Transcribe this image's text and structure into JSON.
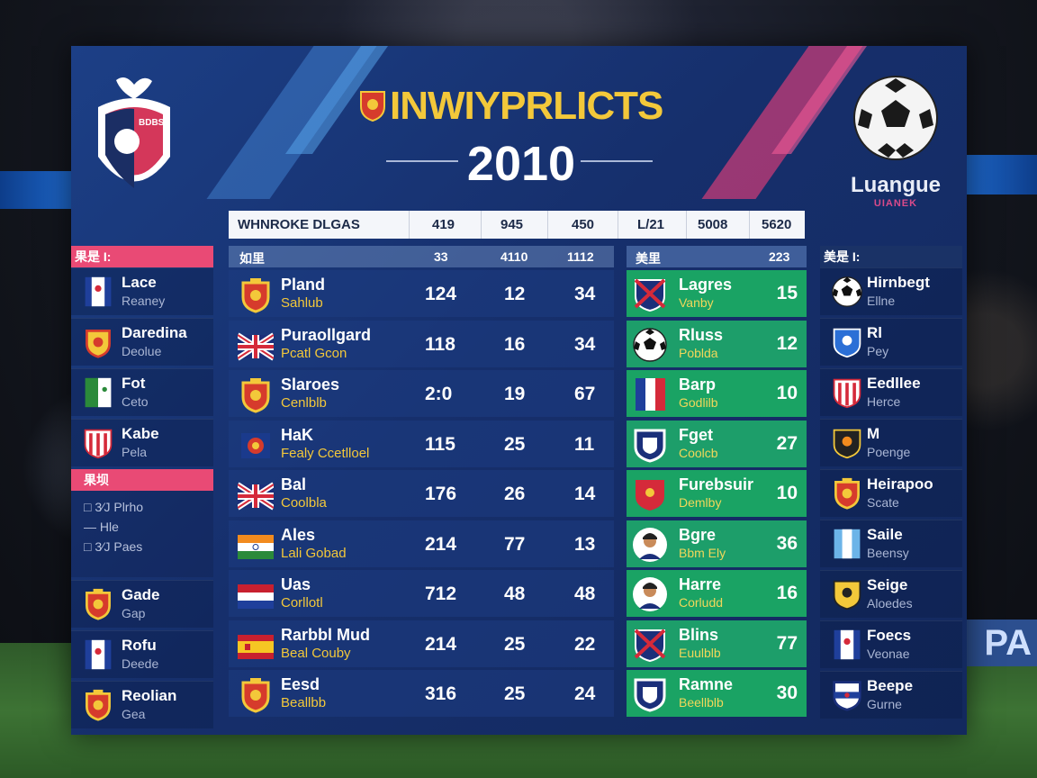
{
  "title": "INWIYPRLICTS",
  "year": "2010",
  "league_text": "Luangue",
  "league_sub": "UIANEK",
  "left_logo_text": "BDBS",
  "column_bar": [
    "WHNROKE DLGAS",
    "419",
    "945",
    "450",
    "L/21",
    "5008",
    "5620"
  ],
  "main_header": {
    "label": "如里",
    "c1": "33",
    "c2": "4110",
    "c3": "1112"
  },
  "main_rows": [
    {
      "name": "Pland",
      "sub": "Sahlub",
      "c1": "124",
      "c2": "12",
      "c3": "34",
      "icon": "crest-red"
    },
    {
      "name": "Puraollgard",
      "sub": "Pcatl Gcon",
      "c1": "118",
      "c2": "16",
      "c3": "34",
      "icon": "flag-uk"
    },
    {
      "name": "Slaroes",
      "sub": "Cenlblb",
      "c1": "2:0",
      "c2": "19",
      "c3": "67",
      "icon": "crest-red"
    },
    {
      "name": "HaK",
      "sub": "Fealy Ccetlloel",
      "c1": "115",
      "c2": "25",
      "c3": "11",
      "icon": "crest-blue"
    },
    {
      "name": "Bal",
      "sub": "Coolbla",
      "c1": "176",
      "c2": "26",
      "c3": "14",
      "icon": "flag-uk"
    },
    {
      "name": "Ales",
      "sub": "Lali Gobad",
      "c1": "214",
      "c2": "77",
      "c3": "13",
      "icon": "flag-india"
    },
    {
      "name": "Uas",
      "sub": "Corllotl",
      "c1": "712",
      "c2": "48",
      "c3": "48",
      "icon": "flag-nl"
    },
    {
      "name": "Rarbbl Mud",
      "sub": "Beal Couby",
      "c1": "214",
      "c2": "25",
      "c3": "22",
      "icon": "flag-es"
    },
    {
      "name": "Eesd",
      "sub": "Beallbb",
      "c1": "316",
      "c2": "25",
      "c3": "24",
      "icon": "crest-red"
    }
  ],
  "green_header": {
    "label": "美里",
    "value": "223"
  },
  "green_rows": [
    {
      "name": "Lagres",
      "sub": "Vanby",
      "value": "15",
      "icon": "shield-uk"
    },
    {
      "name": "Rluss",
      "sub": "Poblda",
      "value": "12",
      "icon": "soccer-ball"
    },
    {
      "name": "Barp",
      "sub": "Godlilb",
      "value": "10",
      "icon": "flag-fr"
    },
    {
      "name": "Fget",
      "sub": "Coolcb",
      "value": "27",
      "icon": "shield-navy"
    },
    {
      "name": "Furebsuir",
      "sub": "Demlby",
      "value": "10",
      "icon": "shield-red"
    },
    {
      "name": "Bgre",
      "sub": "Bbm Ely",
      "value": "36",
      "icon": "player"
    },
    {
      "name": "Harre",
      "sub": "Corludd",
      "value": "16",
      "icon": "player"
    },
    {
      "name": "Blins",
      "sub": "Euulblb",
      "value": "77",
      "icon": "shield-uk"
    },
    {
      "name": "Ramne",
      "sub": "Beellblb",
      "value": "30",
      "icon": "shield-navy"
    }
  ],
  "left_sidebar": {
    "header": "果是 I:",
    "rows_top": [
      {
        "name": "Lace",
        "sub": "Reaney",
        "icon": "flag-blue"
      },
      {
        "name": "Daredina",
        "sub": "Deolue",
        "icon": "crest-yellow"
      },
      {
        "name": "Fot",
        "sub": "Ceto",
        "icon": "flag-green"
      },
      {
        "name": "Kabe",
        "sub": "Pela",
        "icon": "shield-redstripe"
      }
    ],
    "sub_header": "果坝",
    "mini": [
      "□ 3⁄J Plrho",
      "— Hle",
      "□ 3⁄J Paes"
    ],
    "rows_bottom": [
      {
        "name": "Gade",
        "sub": "Gap",
        "icon": "crest-red"
      },
      {
        "name": "Rofu",
        "sub": "Deede",
        "icon": "flag-blue"
      },
      {
        "name": "Reolian",
        "sub": "Gea",
        "icon": "crest-red"
      }
    ]
  },
  "right_sidebar": {
    "header": "美是 I:",
    "rows": [
      {
        "name": "Hirnbegt",
        "sub": "Ellne",
        "icon": "soccer-ball"
      },
      {
        "name": "Rl",
        "sub": "Pey",
        "icon": "shield-blue"
      },
      {
        "name": "Eedllee",
        "sub": "Herce",
        "icon": "shield-redstripe"
      },
      {
        "name": "M",
        "sub": "Poenge",
        "icon": "shield-dark"
      },
      {
        "name": "Heirapoo",
        "sub": "Scate",
        "icon": "crest-red"
      },
      {
        "name": "Saile",
        "sub": "Beensy",
        "icon": "flag-lightblue"
      },
      {
        "name": "Seige",
        "sub": "Aloedes",
        "icon": "shield-yellow"
      },
      {
        "name": "Foecs",
        "sub": "Veonae",
        "icon": "flag-blue"
      },
      {
        "name": "Beepe",
        "sub": "Gurne",
        "icon": "shield-white"
      }
    ]
  }
}
